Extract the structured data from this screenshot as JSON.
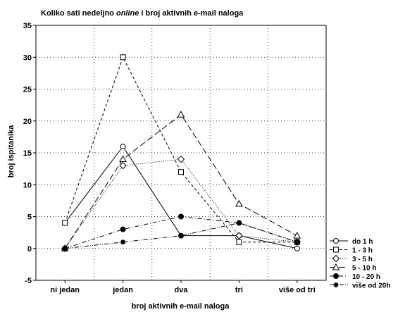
{
  "chart_data": {
    "type": "line",
    "title_prefix": "Koliko sati nedeljno ",
    "title_italic": "online",
    "title_suffix": " i broj aktivnih e-mail naloga",
    "xlabel": "broj aktivnih e-mail naloga",
    "ylabel": "broj ispitanika",
    "categories": [
      "ni jedan",
      "jedan",
      "dva",
      "tri",
      "više od tri"
    ],
    "ylim": [
      -5,
      35
    ],
    "yticks": [
      -5,
      0,
      5,
      10,
      15,
      20,
      25,
      30,
      35
    ],
    "grid": true,
    "legend_position": "right-bottom",
    "series": [
      {
        "name": "do 1 h",
        "values": [
          4,
          16,
          2,
          2,
          0
        ],
        "marker": "circle-open",
        "line_style": "solid",
        "color": "#000000"
      },
      {
        "name": "1 - 3 h",
        "values": [
          4,
          30,
          12,
          1,
          1
        ],
        "marker": "square-open",
        "line_style": "dashed",
        "color": "#000000"
      },
      {
        "name": "3 - 5 h",
        "values": [
          0,
          13,
          14,
          2,
          1
        ],
        "marker": "diamond-open",
        "line_style": "dotted",
        "color": "#000000"
      },
      {
        "name": "5 - 10 h",
        "values": [
          0,
          14,
          21,
          7,
          2
        ],
        "marker": "triangle-open",
        "line_style": "long-dash",
        "color": "#000000"
      },
      {
        "name": "10 - 20 h",
        "values": [
          0,
          3,
          5,
          4,
          1
        ],
        "marker": "circle-filled",
        "line_style": "dash-dot",
        "color": "#000000"
      },
      {
        "name": "više od 20h",
        "values": [
          0,
          1,
          2,
          4,
          1
        ],
        "marker": "star",
        "line_style": "dash-dot-dot",
        "color": "#000000"
      }
    ]
  }
}
